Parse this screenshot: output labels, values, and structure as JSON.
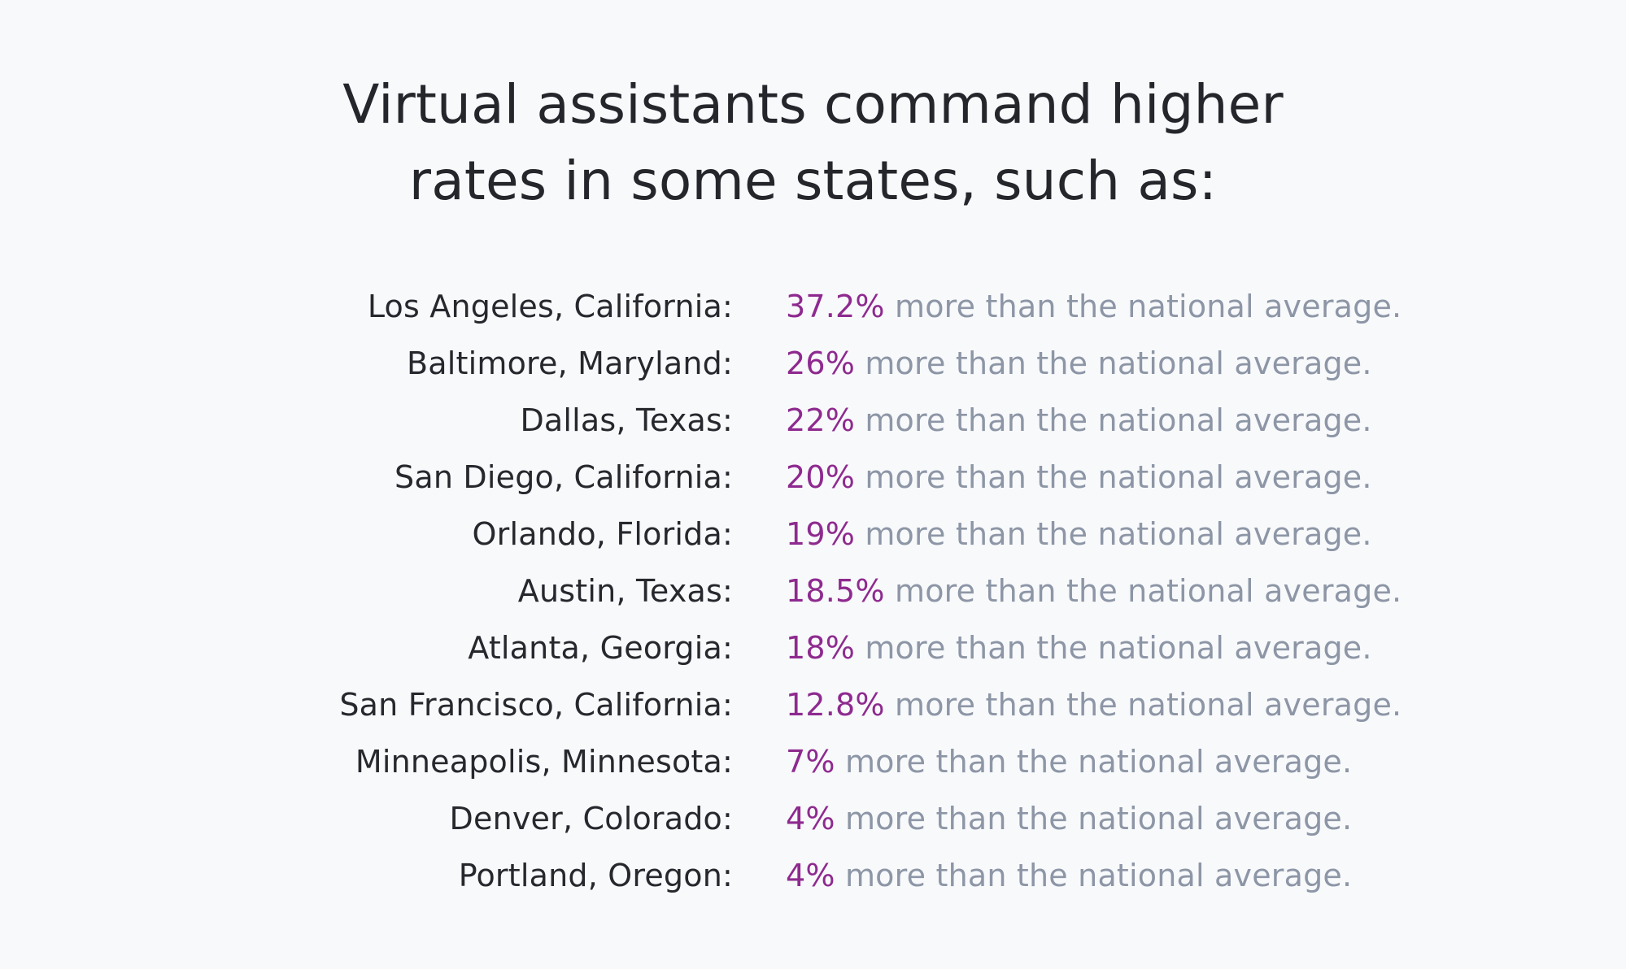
{
  "header": {
    "title_line_1": "Virtual assistants command higher",
    "title_line_2": "rates in some states, such as:"
  },
  "colors": {
    "background": "#f8f9fb",
    "text": "#26282d",
    "accent": "#8e2a8f",
    "muted": "#8d96a6"
  },
  "rates": [
    {
      "city": "Los Angeles, California:",
      "percent": "37.2%",
      "text": "more than the national average."
    },
    {
      "city": "Baltimore, Maryland:",
      "percent": "26%",
      "text": "more than the national average."
    },
    {
      "city": "Dallas, Texas:",
      "percent": "22%",
      "text": "more than the national average."
    },
    {
      "city": "San Diego, California:",
      "percent": "20%",
      "text": "more than the national average."
    },
    {
      "city": "Orlando, Florida:",
      "percent": "19%",
      "text": "more than the national average."
    },
    {
      "city": "Austin, Texas:",
      "percent": "18.5%",
      "text": "more than the national average."
    },
    {
      "city": "Atlanta, Georgia:",
      "percent": "18%",
      "text": "more than the national average."
    },
    {
      "city": "San Francisco, California:",
      "percent": "12.8%",
      "text": "more than the national average."
    },
    {
      "city": "Minneapolis, Minnesota:",
      "percent": "7%",
      "text": "more than the national average."
    },
    {
      "city": "Denver, Colorado:",
      "percent": "4%",
      "text": "more than the national average."
    },
    {
      "city": "Portland, Oregon:",
      "percent": "4%",
      "text": "more than the national average."
    }
  ]
}
